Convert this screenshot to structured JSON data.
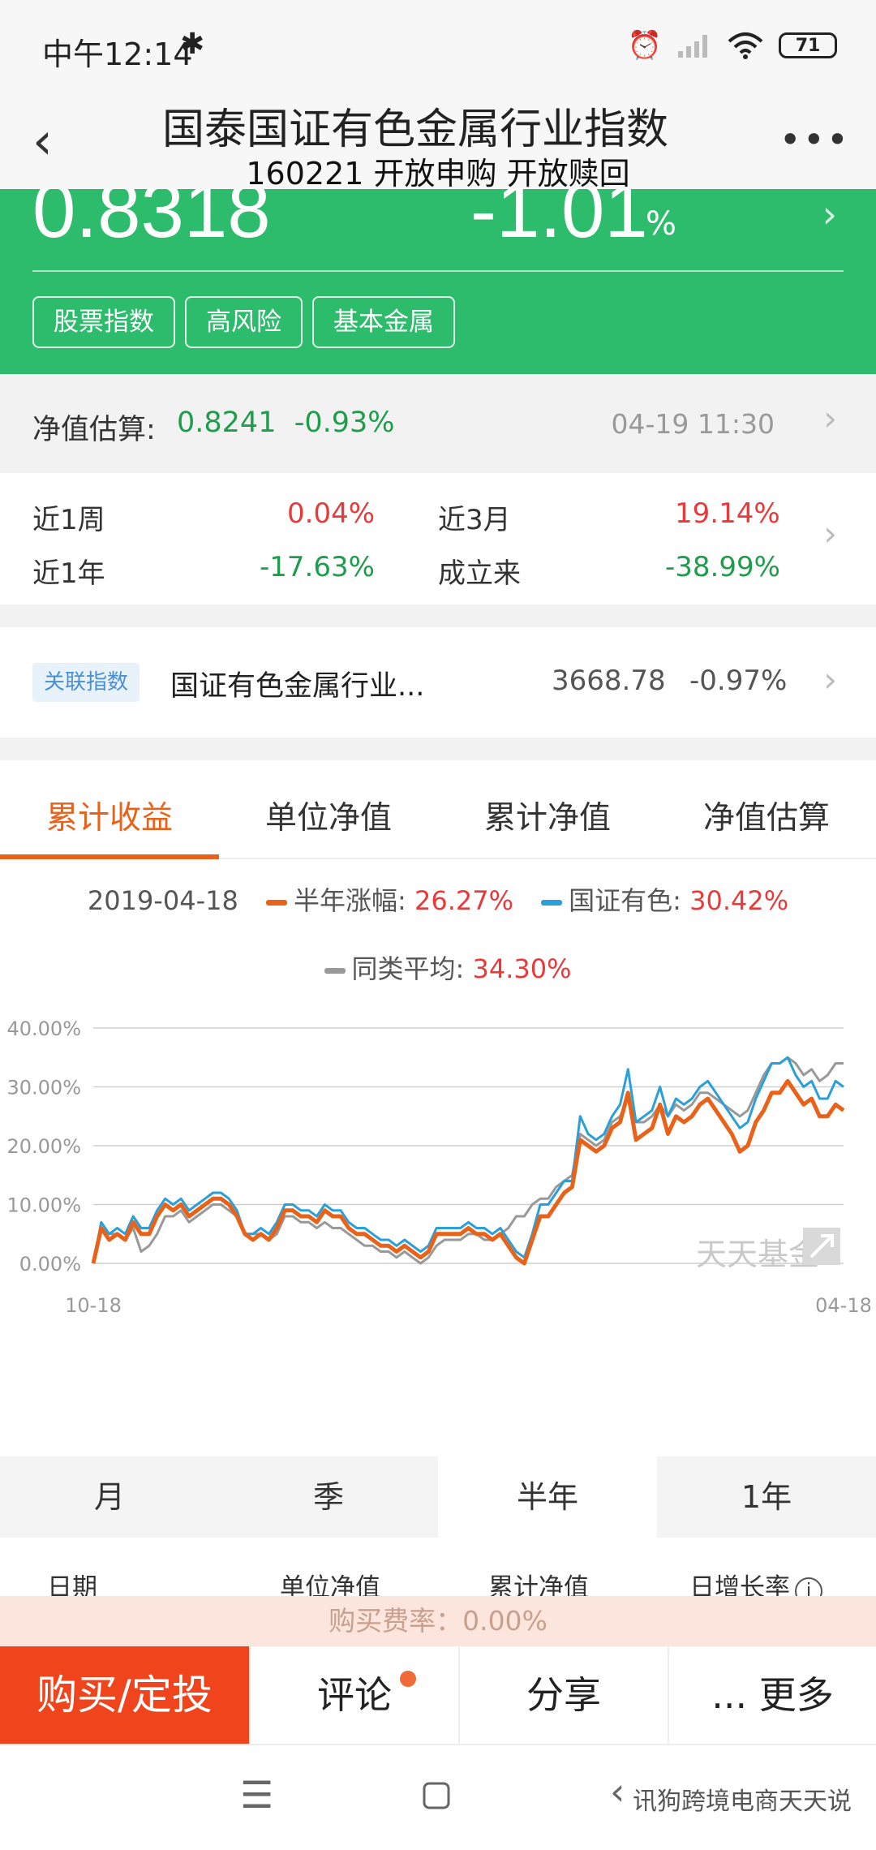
{
  "status_bar": {
    "time": "中午12:14",
    "bluetooth_icon": "bluetooth-icon",
    "battery": "71"
  },
  "header": {
    "title": "国泰国证有色金属行业指数",
    "subtitle": "160221 开放申购 开放赎回",
    "back_icon": "chevron-left-icon",
    "more_icon": "more-dots-icon"
  },
  "hero": {
    "nav": "0.8318",
    "change": "-1.01",
    "change_unit": "%",
    "tags": [
      "股票指数",
      "高风险",
      "基本金属"
    ],
    "bg_color": "#2dbb6c"
  },
  "estimate": {
    "label": "净值估算:",
    "value": "0.8241",
    "change": "-0.93%",
    "time": "04-19 11:30"
  },
  "returns": [
    {
      "label": "近1周",
      "value": "0.04%",
      "tone": "red"
    },
    {
      "label": "近3月",
      "value": "19.14%",
      "tone": "red"
    },
    {
      "label": "近1年",
      "value": "-17.63%",
      "tone": "green"
    },
    {
      "label": "成立来",
      "value": "-38.99%",
      "tone": "green"
    }
  ],
  "index": {
    "badge": "关联指数",
    "name": "国证有色金属行业...",
    "value": "3668.78",
    "change": "-0.97%"
  },
  "chart_tabs": [
    "累计收益",
    "单位净值",
    "累计净值",
    "净值估算"
  ],
  "legend": {
    "date": "2019-04-18",
    "items": [
      {
        "name": "半年涨幅:",
        "value": "26.27%",
        "color": "#e8621a"
      },
      {
        "name": "国证有色:",
        "value": "30.42%",
        "color": "#2a9fd8"
      },
      {
        "name": "同类平均:",
        "value": "34.30%",
        "color": "#999999"
      }
    ]
  },
  "chart_data": {
    "type": "line",
    "y_ticks": [
      "40.00%",
      "30.00%",
      "20.00%",
      "10.00%",
      "0.00%"
    ],
    "ylim": [
      0,
      40
    ],
    "x_tick_labels": [
      "10-18",
      "04-18"
    ],
    "watermark": "天天基金",
    "series": [
      {
        "name": "半年涨幅",
        "color": "#e8621a",
        "values": [
          0,
          6,
          4,
          5,
          4,
          7,
          5,
          5,
          8,
          10,
          9,
          10,
          8,
          9,
          10,
          11,
          11,
          10,
          8,
          5,
          4,
          5,
          4,
          6,
          9,
          9,
          8,
          8,
          7,
          9,
          8,
          8,
          6,
          5,
          5,
          4,
          3,
          3,
          2,
          3,
          2,
          1,
          2,
          5,
          5,
          5,
          5,
          6,
          5,
          5,
          4,
          5,
          3,
          1,
          0,
          4,
          8,
          8,
          10,
          12,
          13,
          21,
          20,
          19,
          20,
          23,
          24,
          29,
          21,
          22,
          23,
          27,
          22,
          25,
          24,
          25,
          27,
          28,
          26,
          24,
          22,
          19,
          20,
          24,
          26,
          29,
          29,
          31,
          29,
          27,
          28,
          25,
          25,
          27,
          26
        ]
      },
      {
        "name": "国证有色",
        "color": "#2a9fd8",
        "values": [
          0,
          7,
          5,
          6,
          5,
          8,
          6,
          6,
          9,
          11,
          10,
          11,
          9,
          10,
          11,
          12,
          12,
          11,
          9,
          5,
          5,
          6,
          5,
          7,
          10,
          10,
          9,
          9,
          8,
          10,
          9,
          9,
          7,
          6,
          6,
          5,
          4,
          4,
          3,
          4,
          3,
          2,
          3,
          6,
          6,
          6,
          6,
          7,
          6,
          6,
          5,
          6,
          4,
          2,
          1,
          5,
          10,
          10,
          12,
          14,
          14,
          25,
          22,
          21,
          22,
          25,
          27,
          33,
          24,
          25,
          26,
          30,
          25,
          28,
          27,
          28,
          30,
          31,
          29,
          27,
          25,
          23,
          24,
          28,
          31,
          34,
          34,
          35,
          32,
          30,
          31,
          28,
          28,
          31,
          30
        ]
      },
      {
        "name": "同类平均",
        "color": "#999999",
        "values": [
          0,
          6,
          5,
          5,
          4,
          6,
          2,
          3,
          5,
          8,
          8,
          9,
          7,
          8,
          9,
          10,
          10,
          9,
          8,
          5,
          5,
          5,
          4,
          5,
          8,
          8,
          7,
          7,
          6,
          7,
          6,
          6,
          5,
          4,
          3,
          3,
          2,
          2,
          1,
          2,
          1,
          0,
          1,
          3,
          4,
          4,
          4,
          5,
          5,
          4,
          4,
          5,
          6,
          8,
          8,
          10,
          11,
          11,
          13,
          14,
          15,
          22,
          21,
          20,
          21,
          24,
          25,
          28,
          24,
          24,
          25,
          27,
          25,
          27,
          26,
          27,
          29,
          29,
          28,
          27,
          26,
          25,
          26,
          29,
          32,
          34,
          34,
          35,
          34,
          32,
          33,
          31,
          32,
          34,
          34
        ]
      }
    ]
  },
  "periods": [
    "月",
    "季",
    "半年",
    "1年"
  ],
  "active_period": 2,
  "table_headers": [
    "日期",
    "单位净值",
    "累计净值",
    "日增长率"
  ],
  "fee_text": "购买费率：0.00%",
  "actions": {
    "buy": "购买/定投",
    "comment": "评论",
    "share": "分享",
    "more": "... 更多"
  },
  "navbar": {
    "menu_icon": "menu-icon",
    "home_icon": "home-square-icon",
    "back_icon": "back-icon",
    "watermark": "讯狗跨境电商天天说"
  }
}
